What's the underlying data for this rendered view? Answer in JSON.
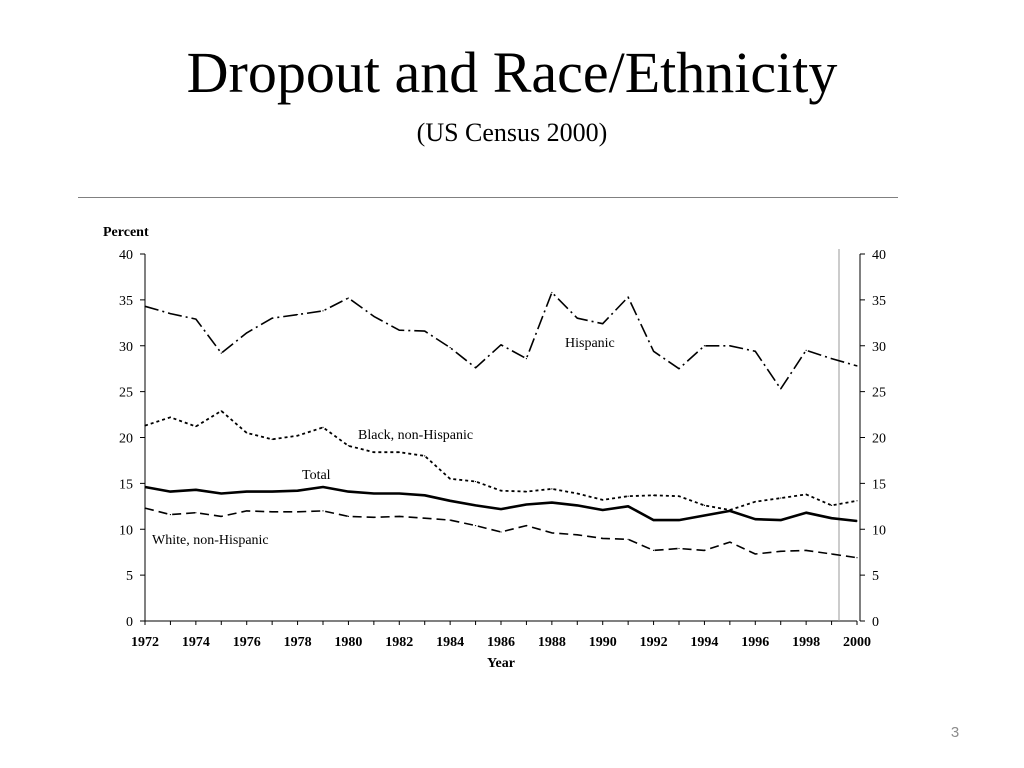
{
  "slide": {
    "title": "Dropout and Race/Ethnicity",
    "subtitle": "(US Census 2000)",
    "page_number": "3"
  },
  "chart_data": {
    "type": "line",
    "ylabel": "Percent",
    "xlabel": "Year",
    "ylim": [
      0,
      40
    ],
    "yticks": [
      0,
      5,
      10,
      15,
      20,
      25,
      30,
      35,
      40
    ],
    "xlim": [
      1972,
      2000
    ],
    "xticks": [
      1972,
      1974,
      1976,
      1978,
      1980,
      1982,
      1984,
      1986,
      1988,
      1990,
      1992,
      1994,
      1996,
      1998,
      2000
    ],
    "grid": false,
    "right_axis": true,
    "line_color": "#000000",
    "x": [
      1972,
      1973,
      1974,
      1975,
      1976,
      1977,
      1978,
      1979,
      1980,
      1981,
      1982,
      1983,
      1984,
      1985,
      1986,
      1987,
      1988,
      1989,
      1990,
      1991,
      1992,
      1993,
      1994,
      1995,
      1996,
      1997,
      1998,
      1999,
      2000
    ],
    "series": [
      {
        "name": "Hispanic",
        "style": "dash-dot",
        "values": [
          34.3,
          33.5,
          32.9,
          29.2,
          31.4,
          33.0,
          33.4,
          33.8,
          35.2,
          33.2,
          31.7,
          31.6,
          29.8,
          27.6,
          30.1,
          28.6,
          35.8,
          33.0,
          32.4,
          35.3,
          29.4,
          27.5,
          30.0,
          30.0,
          29.4,
          25.3,
          29.5,
          28.6,
          27.8
        ]
      },
      {
        "name": "Black, non-Hispanic",
        "style": "dotted",
        "values": [
          21.3,
          22.2,
          21.2,
          22.9,
          20.5,
          19.8,
          20.2,
          21.1,
          19.1,
          18.4,
          18.4,
          18.0,
          15.5,
          15.2,
          14.2,
          14.1,
          14.4,
          13.9,
          13.2,
          13.6,
          13.7,
          13.6,
          12.6,
          12.1,
          13.0,
          13.4,
          13.8,
          12.6,
          13.1
        ]
      },
      {
        "name": "Total",
        "style": "solid",
        "values": [
          14.6,
          14.1,
          14.3,
          13.9,
          14.1,
          14.1,
          14.2,
          14.6,
          14.1,
          13.9,
          13.9,
          13.7,
          13.1,
          12.6,
          12.2,
          12.7,
          12.9,
          12.6,
          12.1,
          12.5,
          11.0,
          11.0,
          11.5,
          12.0,
          11.1,
          11.0,
          11.8,
          11.2,
          10.9
        ]
      },
      {
        "name": "White, non-Hispanic",
        "style": "dashed",
        "values": [
          12.3,
          11.6,
          11.8,
          11.4,
          12.0,
          11.9,
          11.9,
          12.0,
          11.4,
          11.3,
          11.4,
          11.2,
          11.0,
          10.4,
          9.7,
          10.4,
          9.6,
          9.4,
          9.0,
          8.9,
          7.7,
          7.9,
          7.7,
          8.6,
          7.3,
          7.6,
          7.7,
          7.3,
          6.9
        ]
      }
    ],
    "annotations": [
      "Hispanic",
      "Black, non-Hispanic",
      "Total",
      "White, non-Hispanic"
    ]
  }
}
